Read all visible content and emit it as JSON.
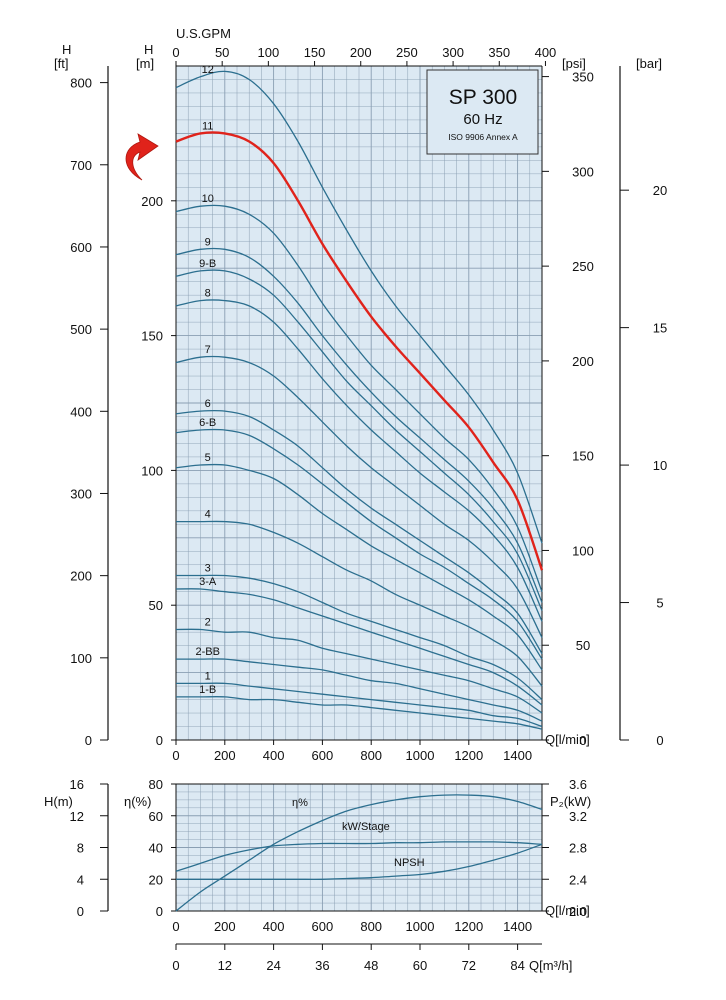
{
  "colors": {
    "plot_bg": "#dce9f3",
    "grid": "#8a9fb3",
    "curve": "#2c6f8f",
    "highlight": "#e0231b",
    "axis": "#111111"
  },
  "top_axis_label": "U.S.GPM",
  "top_ticks": [
    "0",
    "50",
    "100",
    "150",
    "200",
    "250",
    "300",
    "350",
    "400"
  ],
  "left_ft_unit": [
    "H",
    "[ft]"
  ],
  "left_m_unit": [
    "H",
    "[m]"
  ],
  "right_psi_unit": "[psi]",
  "right_bar_unit": "[bar]",
  "ft_ticks": [
    "0",
    "100",
    "200",
    "300",
    "400",
    "500",
    "600",
    "700",
    "800"
  ],
  "m_ticks": [
    "0",
    "50",
    "100",
    "150",
    "200"
  ],
  "psi_ticks": [
    "0",
    "50",
    "100",
    "150",
    "200",
    "250",
    "300",
    "350"
  ],
  "bar_ticks": [
    "0",
    "5",
    "10",
    "15",
    "20"
  ],
  "q_ticks": [
    "0",
    "200",
    "400",
    "600",
    "800",
    "1000",
    "1200",
    "1400"
  ],
  "q_label": "Q[l/min]",
  "qm3_ticks": [
    "0",
    "12",
    "24",
    "36",
    "48",
    "60",
    "72",
    "84"
  ],
  "qm3_label": "Q[m³/h]",
  "legend": {
    "title": "SP 300",
    "subtitle": "60 Hz",
    "note": "ISO 9906 Annex A"
  },
  "lower": {
    "h_unit": "H(m)",
    "h_ticks": [
      "0",
      "4",
      "8",
      "12",
      "16"
    ],
    "eta_unit": "η(%)",
    "eta_ticks": [
      "0",
      "20",
      "40",
      "60",
      "80"
    ],
    "p2_unit": "P₂(kW)",
    "p2_ticks": [
      "2.0",
      "2.4",
      "2.8",
      "3.2",
      "3.6"
    ],
    "labels": {
      "eta": "η%",
      "kw": "kW/Stage",
      "npsh": "NPSH"
    }
  },
  "chart_data": [
    {
      "type": "line",
      "title": "SP 300 60 Hz",
      "xlabel": "Q[l/min]",
      "ylabel": "H [m]",
      "xlim": [
        0,
        1500
      ],
      "ylim": [
        0,
        250
      ],
      "grid": true,
      "highlighted_series": "11",
      "x": [
        0,
        100,
        200,
        300,
        400,
        500,
        600,
        700,
        800,
        900,
        1000,
        1100,
        1200,
        1300,
        1400,
        1500
      ],
      "series": [
        {
          "name": "12",
          "values": [
            242,
            246,
            248,
            245,
            236,
            222,
            205,
            189,
            174,
            161,
            150,
            139,
            128,
            115,
            99,
            73
          ]
        },
        {
          "name": "11",
          "values": [
            222,
            225,
            225,
            222,
            214,
            200,
            184,
            170,
            157,
            146,
            136,
            126,
            116,
            103,
            89,
            63
          ]
        },
        {
          "name": "10",
          "values": [
            196,
            198,
            198,
            195,
            188,
            176,
            162,
            150,
            139,
            130,
            121,
            112,
            104,
            93,
            79,
            55
          ]
        },
        {
          "name": "9",
          "values": [
            180,
            182,
            182,
            179,
            172,
            162,
            150,
            139,
            129,
            120,
            112,
            104,
            96,
            86,
            73,
            51
          ]
        },
        {
          "name": "9-B",
          "values": [
            172,
            174,
            174,
            171,
            165,
            155,
            144,
            133,
            124,
            115,
            107,
            99,
            91,
            81,
            69,
            48
          ]
        },
        {
          "name": "8",
          "values": [
            161,
            163,
            163,
            161,
            155,
            145,
            134,
            124,
            115,
            107,
            99,
            92,
            85,
            76,
            64,
            44
          ]
        },
        {
          "name": "7",
          "values": [
            140,
            142,
            142,
            140,
            135,
            127,
            118,
            109,
            101,
            94,
            87,
            80,
            74,
            66,
            56,
            38
          ]
        },
        {
          "name": "6",
          "values": [
            121,
            122,
            122,
            120,
            115,
            109,
            101,
            93,
            86,
            80,
            74,
            68,
            62,
            55,
            47,
            32
          ]
        },
        {
          "name": "6-B",
          "values": [
            114,
            115,
            115,
            113,
            108,
            102,
            95,
            88,
            81,
            75,
            69,
            64,
            58,
            52,
            44,
            30
          ]
        },
        {
          "name": "5",
          "values": [
            101,
            102,
            102,
            100,
            97,
            91,
            84,
            78,
            72,
            67,
            62,
            57,
            52,
            46,
            39,
            26
          ]
        },
        {
          "name": "4",
          "values": [
            81,
            81,
            81,
            80,
            77,
            73,
            68,
            63,
            59,
            54,
            50,
            46,
            42,
            37,
            31,
            20
          ]
        },
        {
          "name": "3",
          "values": [
            61,
            61,
            61,
            60,
            58,
            55,
            51,
            47,
            44,
            41,
            38,
            35,
            31,
            28,
            23,
            15
          ]
        },
        {
          "name": "3-A",
          "values": [
            56,
            56,
            55,
            54,
            52,
            49,
            46,
            43,
            40,
            37,
            34,
            31,
            28,
            25,
            20,
            13
          ]
        },
        {
          "name": "2",
          "values": [
            41,
            41,
            40,
            40,
            38,
            37,
            34,
            32,
            30,
            28,
            26,
            24,
            22,
            19,
            16,
            10
          ]
        },
        {
          "name": "2-BB",
          "values": [
            30,
            30,
            30,
            29,
            28,
            27,
            26,
            24,
            22,
            21,
            19,
            17,
            15,
            13,
            11,
            7
          ]
        },
        {
          "name": "1",
          "values": [
            21,
            21,
            21,
            20,
            19,
            18,
            17,
            16,
            15,
            14,
            13,
            12,
            11,
            9,
            8,
            5
          ]
        },
        {
          "name": "1-B",
          "values": [
            16,
            16,
            16,
            15,
            15,
            14,
            13,
            13,
            12,
            11,
            10,
            9,
            8,
            7,
            6,
            4
          ]
        }
      ]
    },
    {
      "type": "line",
      "xlabel": "Q[l/min]",
      "xlim": [
        0,
        1500
      ],
      "grid": true,
      "x": [
        0,
        100,
        200,
        300,
        400,
        500,
        600,
        700,
        800,
        900,
        1000,
        1100,
        1200,
        1300,
        1400,
        1500
      ],
      "series": [
        {
          "name": "η%",
          "axis": "η(%)",
          "values": [
            0,
            12,
            22,
            32,
            42,
            50,
            57,
            63,
            67,
            70,
            72,
            73,
            73,
            72,
            69,
            64
          ]
        },
        {
          "name": "kW/Stage",
          "axis": "P₂(kW)",
          "values": [
            2.5,
            2.6,
            2.7,
            2.77,
            2.82,
            2.84,
            2.85,
            2.85,
            2.85,
            2.86,
            2.86,
            2.87,
            2.87,
            2.87,
            2.86,
            2.84
          ]
        },
        {
          "name": "NPSH",
          "axis": "H(m)",
          "values": [
            4,
            4,
            4,
            4,
            4,
            4,
            4,
            4.1,
            4.2,
            4.4,
            4.6,
            5.0,
            5.6,
            6.4,
            7.3,
            8.4
          ]
        }
      ],
      "ylims": {
        "H(m)": [
          0,
          16
        ],
        "η(%)": [
          0,
          80
        ],
        "P₂(kW)": [
          2.0,
          3.6
        ]
      }
    }
  ]
}
